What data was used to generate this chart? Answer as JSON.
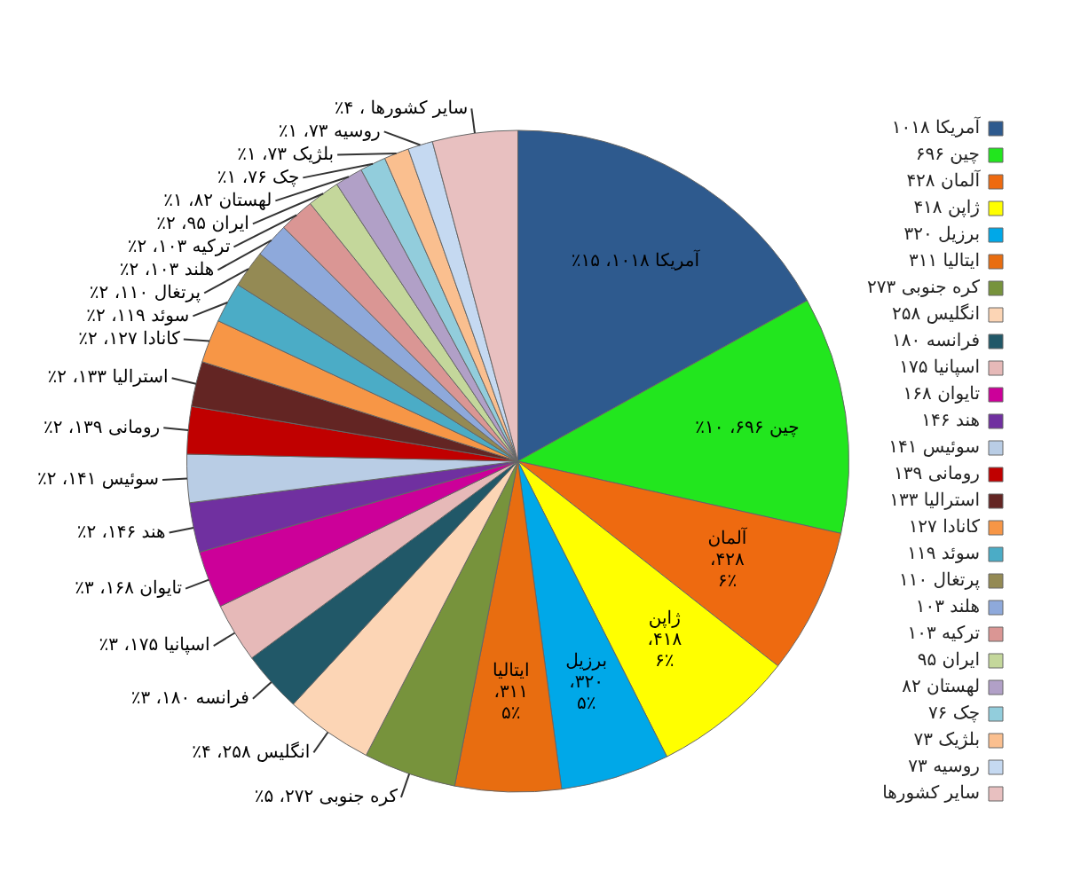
{
  "chart_data": {
    "type": "pie",
    "categories": [
      "آمریکا ۱۰۱۸",
      "چین ۶۹۶",
      "آلمان ۴۲۸",
      "ژاپن ۴۱۸",
      "برزیل ۳۲۰",
      "ایتالیا ۳۱۱",
      "کره جنوبی ۲۷۳",
      "انگلیس ۲۵۸",
      "فرانسه ۱۸۰",
      "اسپانیا ۱۷۵",
      "تایوان ۱۶۸",
      "هند ۱۴۶",
      "سوئیس ۱۴۱",
      "رومانی ۱۳۹",
      "استرالیا ۱۳۳",
      "کانادا ۱۲۷",
      "سوئد ۱۱۹",
      "پرتغال ۱۱۰",
      "هلند ۱۰۳",
      "ترکیه ۱۰۳",
      "ایران ۹۵",
      "لهستان ۸۲",
      "چک ۷۶",
      "بلژیک ۷۳",
      "روسیه ۷۳",
      "سایر کشورها"
    ],
    "values": [
      1018,
      696,
      428,
      418,
      320,
      311,
      272,
      258,
      180,
      175,
      168,
      146,
      141,
      139,
      133,
      127,
      119,
      110,
      103,
      103,
      95,
      82,
      76,
      73,
      73,
      250
    ],
    "colors": [
      "#2e5a8e",
      "#22e61e",
      "#ee6a10",
      "#ffff00",
      "#00a8e8",
      "#e86d10",
      "#77933c",
      "#fcd5b5",
      "#215868",
      "#e6b9b8",
      "#cc0099",
      "#7030a0",
      "#b9cde5",
      "#c00000",
      "#632523",
      "#f79646",
      "#4bacc6",
      "#948a54",
      "#8ea9db",
      "#da9694",
      "#c4d79b",
      "#b1a0c7",
      "#92cddc",
      "#fabf8f",
      "#c5d9f1",
      "#e8c0c0"
    ],
    "value_labels": [
      "آمریکا ۱۰۱۸، ۱۵٪",
      "چین ۶۹۶، ۱۰٪",
      "آلمان ۴۲۸، ۶٪",
      "ژاپن ۴۱۸، ۶٪",
      "برزیل ۳۲۰، ۵٪",
      "ایتالیا ۳۱۱، ۵٪",
      "کره جنوبی ۲۷۲، ۵٪",
      "انگلیس ۲۵۸، ۴٪",
      "فرانسه ۱۸۰، ۳٪",
      "اسپانیا ۱۷۵، ۳٪",
      "تایوان ۱۶۸، ۳٪",
      "هند ۱۴۶، ۲٪",
      "سوئیس ۱۴۱، ۲٪",
      "رومانی ۱۳۹، ۲٪",
      "استرالیا ۱۳۳، ۲٪",
      "کانادا ۱۲۷، ۲٪",
      "سوئد ۱۱۹، ۲٪",
      "پرتغال ۱۱۰، ۲٪",
      "هلند ۱۰۳، ۲٪",
      "ترکیه ۱۰۳، ۲٪",
      "ایران ۹۵، ۲٪",
      "لهستان ۸۲، ۱٪",
      "چک ۷۶، ۱٪",
      "بلژیک ۷۳، ۱٪",
      "روسیه ۷۳، ۱٪",
      null
    ],
    "annotations": [
      "سایر کشورها ، ۴٪"
    ],
    "legend": "right"
  }
}
